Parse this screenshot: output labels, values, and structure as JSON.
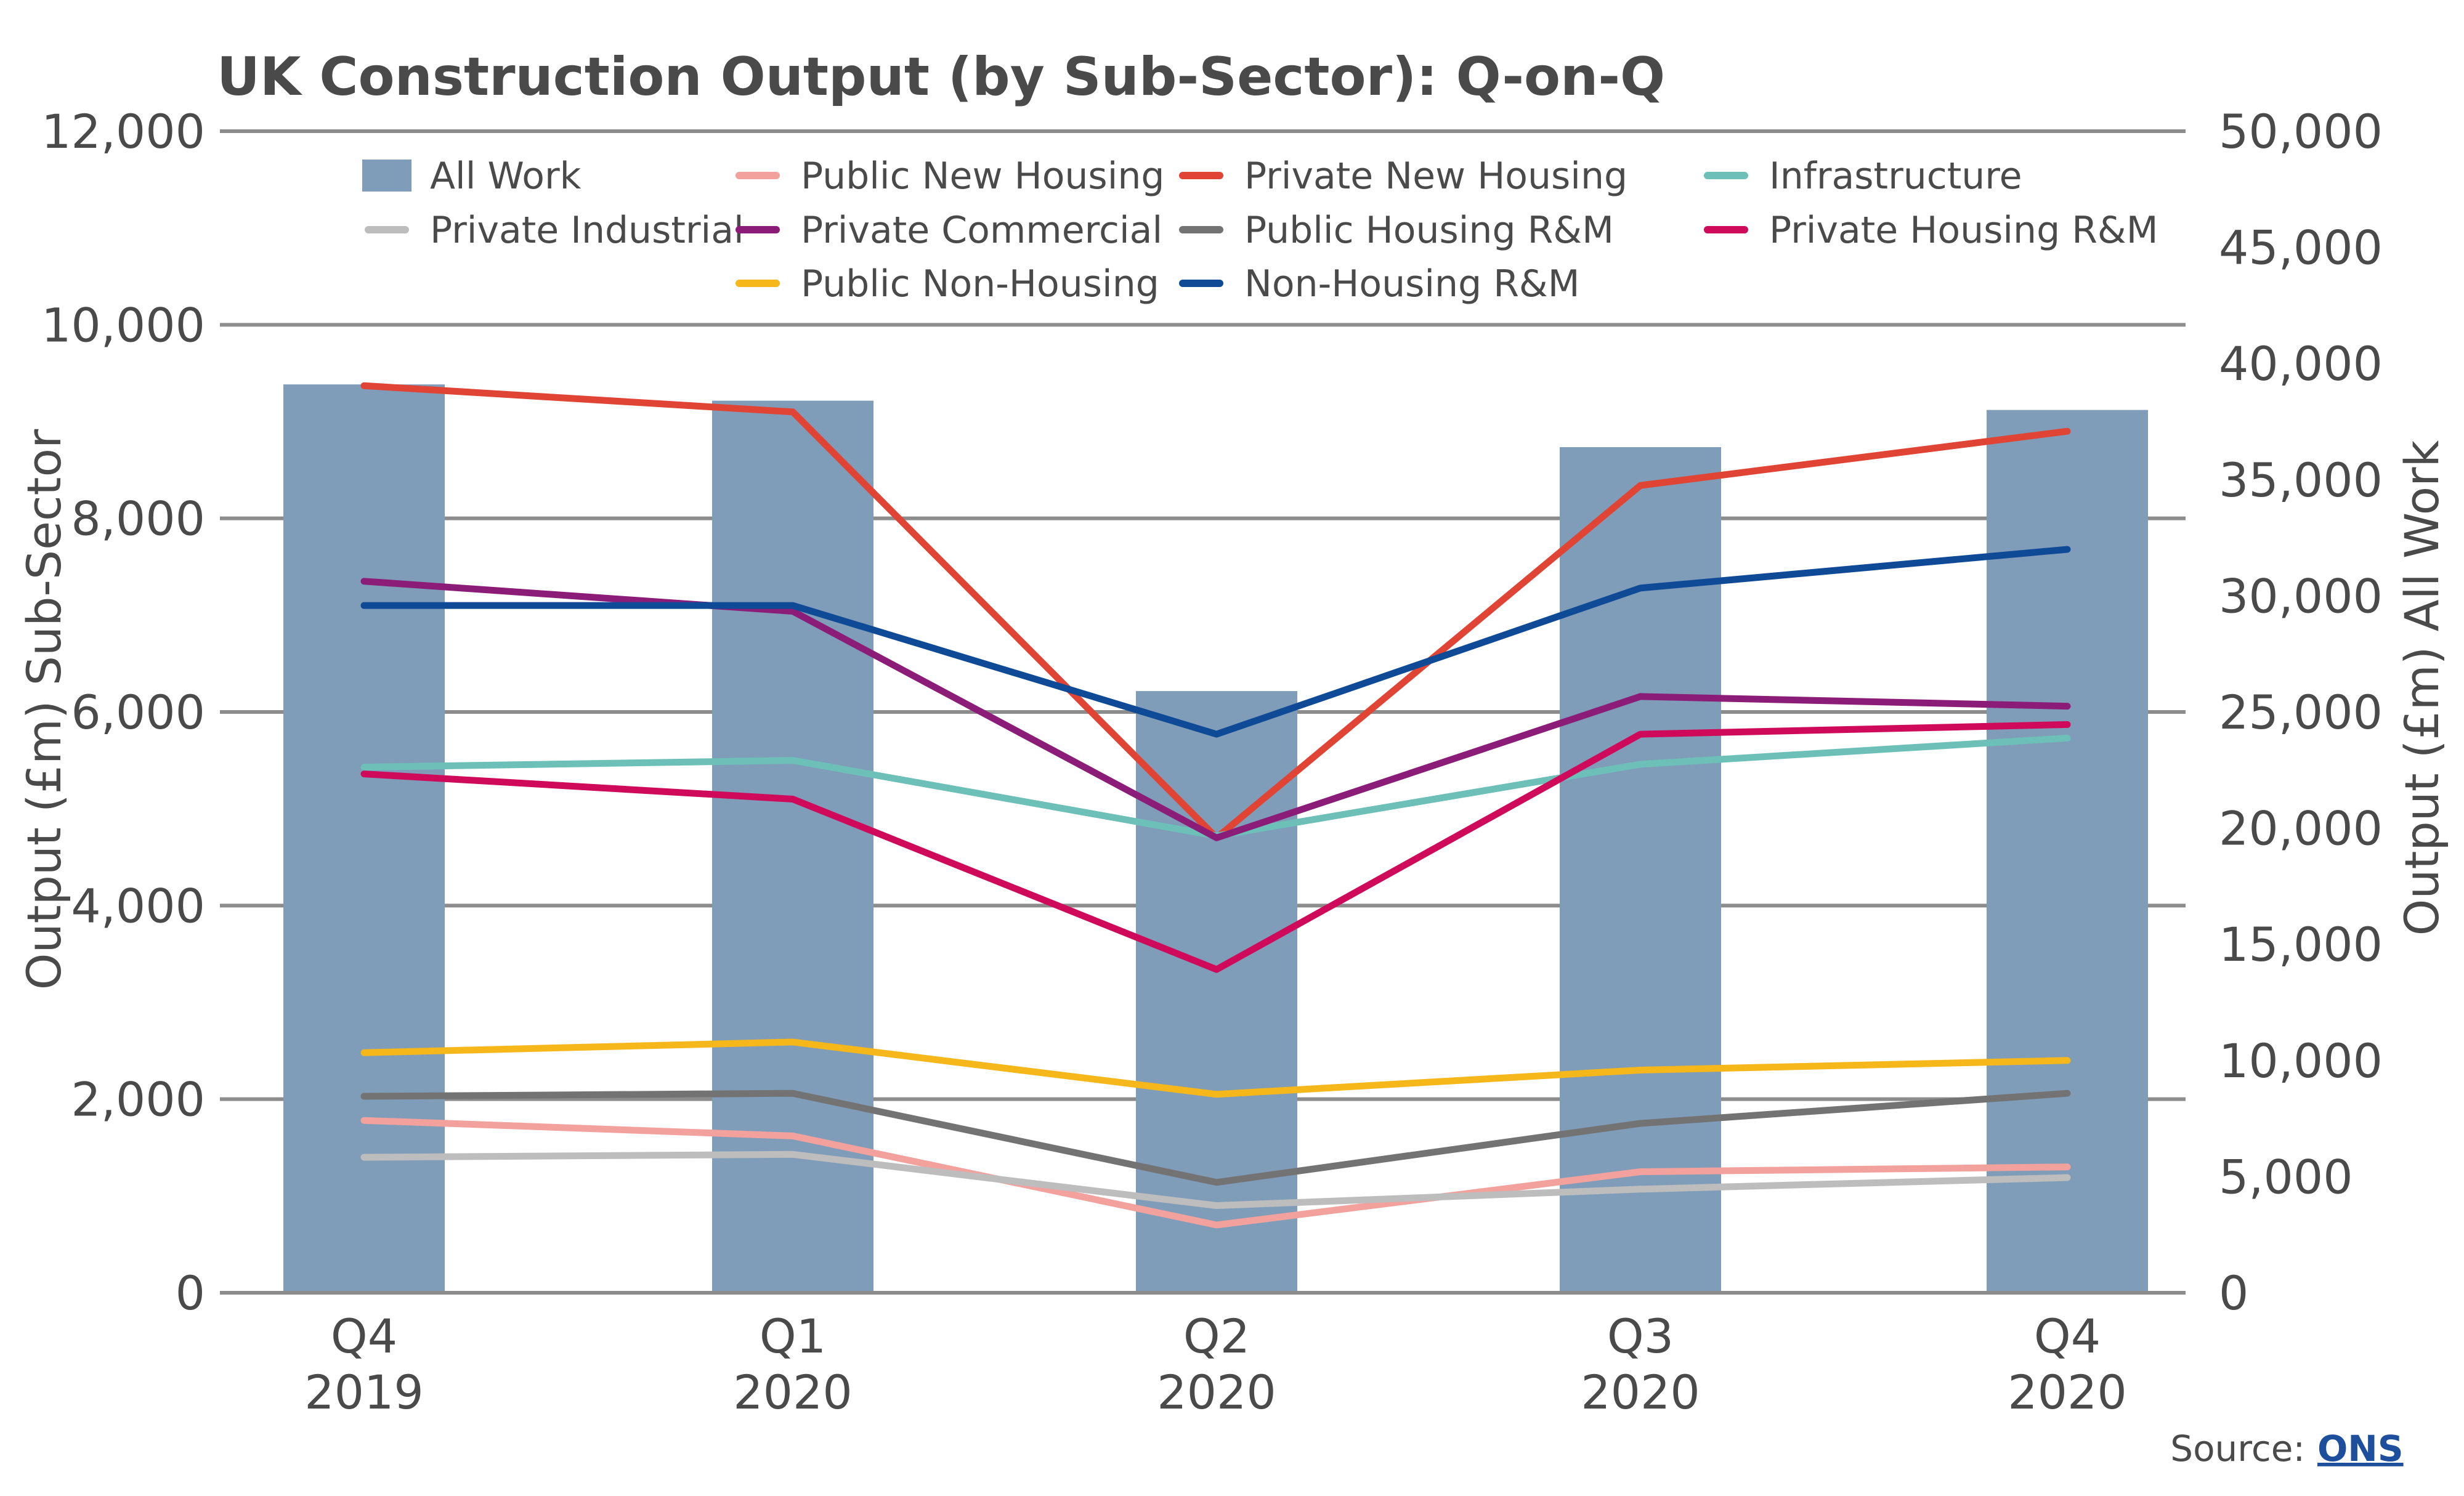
{
  "chart_data": {
    "type": "bar+line",
    "title": "UK Construction Output (by Sub-Sector): Q-on-Q",
    "categories": [
      [
        "Q4",
        "2019"
      ],
      [
        "Q1",
        "2020"
      ],
      [
        "Q2",
        "2020"
      ],
      [
        "Q3",
        "2020"
      ],
      [
        "Q4",
        "2020"
      ]
    ],
    "y_left": {
      "label": "Output (£m) Sub-Sector",
      "range": [
        0,
        12000
      ],
      "ticks": [
        0,
        2000,
        4000,
        6000,
        8000,
        10000,
        12000
      ],
      "tick_labels": [
        "0",
        "2,000",
        "4,000",
        "6,000",
        "8,000",
        "10,000",
        "12,000"
      ]
    },
    "y_right": {
      "label": "Output (£m) All Work",
      "range": [
        0,
        50000
      ],
      "ticks": [
        0,
        5000,
        10000,
        15000,
        20000,
        25000,
        30000,
        35000,
        40000,
        45000,
        50000
      ],
      "tick_labels": [
        "0",
        "5,000",
        "10,000",
        "15,000",
        "20,000",
        "25,000",
        "30,000",
        "35,000",
        "40,000",
        "45,000",
        "50,000"
      ]
    },
    "grid": true,
    "legend_position": "top",
    "bar_series": {
      "name": "All Work",
      "axis": "right",
      "color": "#7f9db9",
      "values": [
        39100,
        38400,
        25900,
        36400,
        38000
      ]
    },
    "series": [
      {
        "name": "Public New Housing",
        "axis": "left",
        "color": "#f2a19c",
        "values": [
          1780,
          1620,
          700,
          1250,
          1300
        ]
      },
      {
        "name": "Private New Housing",
        "axis": "left",
        "color": "#e04434",
        "values": [
          9370,
          9100,
          4700,
          8340,
          8900
        ]
      },
      {
        "name": "Infrastructure",
        "axis": "left",
        "color": "#6cc0b8",
        "values": [
          5430,
          5500,
          4720,
          5460,
          5730
        ]
      },
      {
        "name": "Private Industrial",
        "axis": "left",
        "color": "#bdbdbd",
        "values": [
          1400,
          1430,
          900,
          1070,
          1190
        ]
      },
      {
        "name": "Private Commercial",
        "axis": "left",
        "color": "#8b1d78",
        "values": [
          7350,
          7040,
          4700,
          6160,
          6060
        ]
      },
      {
        "name": "Public Housing R&M",
        "axis": "left",
        "color": "#737373",
        "values": [
          2030,
          2060,
          1140,
          1750,
          2060
        ]
      },
      {
        "name": "Private Housing R&M",
        "axis": "left",
        "color": "#cf0a5a",
        "values": [
          5360,
          5100,
          3340,
          5770,
          5870
        ]
      },
      {
        "name": "Public Non-Housing",
        "axis": "left",
        "color": "#f5b719",
        "values": [
          2480,
          2590,
          2050,
          2300,
          2400
        ]
      },
      {
        "name": "Non-Housing R&M",
        "axis": "left",
        "color": "#0f4a96",
        "values": [
          7100,
          7100,
          5770,
          7280,
          7680
        ]
      }
    ],
    "legend_rows": [
      [
        "All Work",
        "Public New Housing",
        "Private New Housing",
        "Infrastructure"
      ],
      [
        "Private Industrial",
        "Private Commercial",
        "Public Housing R&M",
        "Private Housing R&M"
      ],
      [
        "",
        "Public Non-Housing",
        "Non-Housing R&M",
        ""
      ]
    ]
  },
  "source": {
    "label": "Source:",
    "link_text": "ONS"
  },
  "colors": {
    "gridline": "#8c8c8c",
    "text": "#4a4a4a",
    "link": "#1d4f9c"
  }
}
